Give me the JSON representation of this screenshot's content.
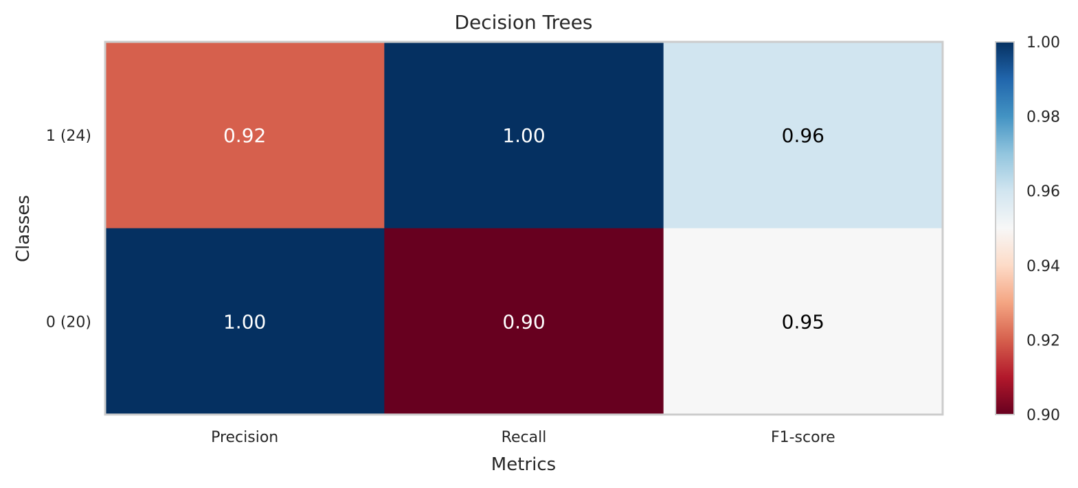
{
  "chart_data": {
    "type": "heatmap",
    "title": "Decision Trees",
    "xlabel": "Metrics",
    "ylabel": "Classes",
    "x_categories": [
      "Precision",
      "Recall",
      "F1-score"
    ],
    "y_categories": [
      "1 (24)",
      "0 (20)"
    ],
    "values": [
      [
        0.92,
        1.0,
        0.96
      ],
      [
        1.0,
        0.9,
        0.95
      ]
    ],
    "cell_labels": [
      [
        "0.92",
        "1.00",
        "0.96"
      ],
      [
        "1.00",
        "0.90",
        "0.95"
      ]
    ],
    "colorbar": {
      "vmin": 0.9,
      "vmax": 1.0,
      "ticks": [
        "0.90",
        "0.92",
        "0.94",
        "0.96",
        "0.98",
        "1.00"
      ],
      "colormap": "RdBu"
    },
    "grid": false
  }
}
